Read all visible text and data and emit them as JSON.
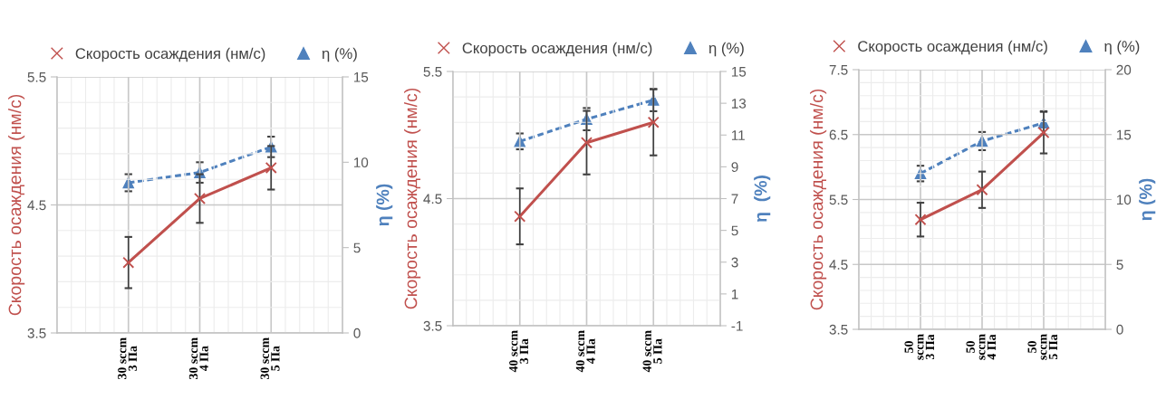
{
  "chart_data": [
    {
      "type": "line",
      "categories": [
        "30 sccm\n3 Па",
        "30 sccm\n4 Па",
        "30 sccm\n5 Па"
      ],
      "ylabel": "Скорость осаждения (нм/с)",
      "y2label": "η (%)",
      "ylim": [
        3.5,
        5.5
      ],
      "yticks": [
        3.5,
        4.5,
        5.5
      ],
      "y2lim": [
        0,
        15
      ],
      "y2ticks": [
        0,
        5,
        10,
        15
      ],
      "grid": true,
      "legend": "top",
      "series": [
        {
          "name": "Скорость осаждения (нм/с)",
          "color": "#c0504d",
          "marker": "cross",
          "line_style": "solid",
          "values": [
            4.05,
            4.55,
            4.79
          ],
          "errors": [
            0.2,
            0.19,
            0.17
          ]
        },
        {
          "name": "η (%)",
          "color": "#4f81bd",
          "marker": "triangle",
          "line_style": "dashed",
          "axis": "y2",
          "values": [
            8.8,
            9.4,
            10.9
          ],
          "errors": [
            0.5,
            0.6,
            0.6
          ]
        }
      ]
    },
    {
      "type": "line",
      "categories": [
        "40 sccm\n3 Па",
        "40 sccm\n4 Па",
        "40 sccm\n5 Па"
      ],
      "ylabel": "Скорость осаждения (нм/с)",
      "y2label": "η  (%)",
      "ylim": [
        3.5,
        5.5
      ],
      "yticks": [
        3.5,
        4.5,
        5.5
      ],
      "y2lim": [
        -1,
        15
      ],
      "y2ticks": [
        -1,
        1,
        3,
        5,
        7,
        9,
        11,
        13,
        15
      ],
      "grid": true,
      "legend": "top",
      "series": [
        {
          "name": "Скорость осаждения (нм/с)",
          "color": "#c0504d",
          "marker": "cross",
          "line_style": "solid",
          "values": [
            4.36,
            4.94,
            5.1
          ],
          "errors": [
            0.22,
            0.25,
            0.26
          ]
        },
        {
          "name": "η (%)",
          "color": "#4f81bd",
          "marker": "triangle",
          "line_style": "dashed",
          "axis": "y2",
          "values": [
            10.6,
            12.0,
            13.2
          ],
          "errors": [
            0.5,
            0.7,
            0.7
          ]
        }
      ]
    },
    {
      "type": "line",
      "categories": [
        "50\nsccm\n3 Па",
        "50\nsccm\n4 Па",
        "50\nsccm\n5 Па"
      ],
      "ylabel": "Скорость осаждения (нм/с)",
      "y2label": "η (%)",
      "ylim": [
        3.5,
        7.5
      ],
      "yticks": [
        3.5,
        4.5,
        5.5,
        6.5,
        7.5
      ],
      "y2lim": [
        0,
        20
      ],
      "y2ticks": [
        0,
        5,
        10,
        15,
        20
      ],
      "grid": true,
      "legend": "top",
      "series": [
        {
          "name": "Скорость осаждения (нм/с)",
          "color": "#c0504d",
          "marker": "cross",
          "line_style": "solid",
          "values": [
            5.19,
            5.65,
            6.53
          ],
          "errors": [
            0.26,
            0.28,
            0.32
          ]
        },
        {
          "name": "η (%)",
          "color": "#4f81bd",
          "marker": "triangle",
          "line_style": "dashed",
          "axis": "y2",
          "values": [
            12.0,
            14.5,
            15.9
          ],
          "errors": [
            0.6,
            0.7,
            0.9
          ]
        }
      ]
    }
  ]
}
